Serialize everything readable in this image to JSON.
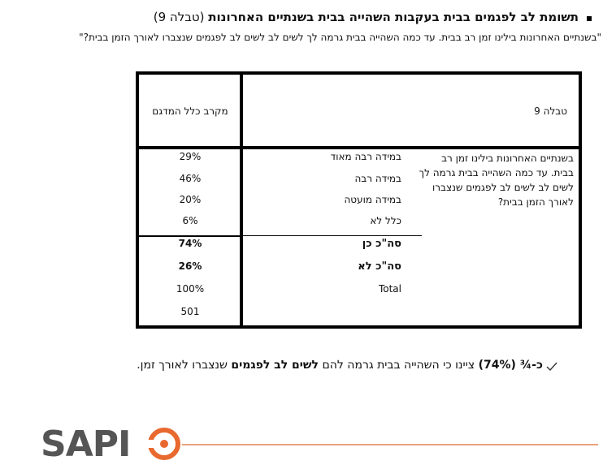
{
  "heading": {
    "title": "תשומת לב לפגמים בבית בעקבות השהייה בבית בשנתיים האחרונות",
    "ref": "(טבלה 9)"
  },
  "question": "\"בשנתיים האחרונות בילינו זמן רב בבית. עד כמה השהייה בבית גרמה לך לשים לב לשים לב לפגמים שנצברו לאורך הזמן בבית?\"",
  "table": {
    "title": "טבלה 9",
    "column": "מקרב כלל המדגם",
    "question": "בשנתיים האחרונות בילינו זמן רב בבית. עד כמה השהייה בבית גרמה לך לשים לב לשים לב לפגמים שנצברו לאורך הזמן בבית?",
    "rows": [
      {
        "label": "במידה רבה מאוד",
        "value": "29%"
      },
      {
        "label": "במידה רבה",
        "value": "46%"
      },
      {
        "label": "במידה מועטה",
        "value": "20%"
      },
      {
        "label": "כלל לא",
        "value": "6%"
      },
      {
        "label": "סה\"כ כן",
        "value": "74%"
      },
      {
        "label": "סה\"כ לא",
        "value": "26%"
      },
      {
        "label": "Total",
        "value": "100%"
      },
      {
        "value": "501"
      }
    ]
  },
  "summary": {
    "parts": [
      "כ-¾ (74%)",
      " ציינו כי השהייה בבית גרמה להם ",
      "לשים לב לפגמים",
      " שנצברו לאורך זמן."
    ]
  },
  "logo": "SAPI"
}
